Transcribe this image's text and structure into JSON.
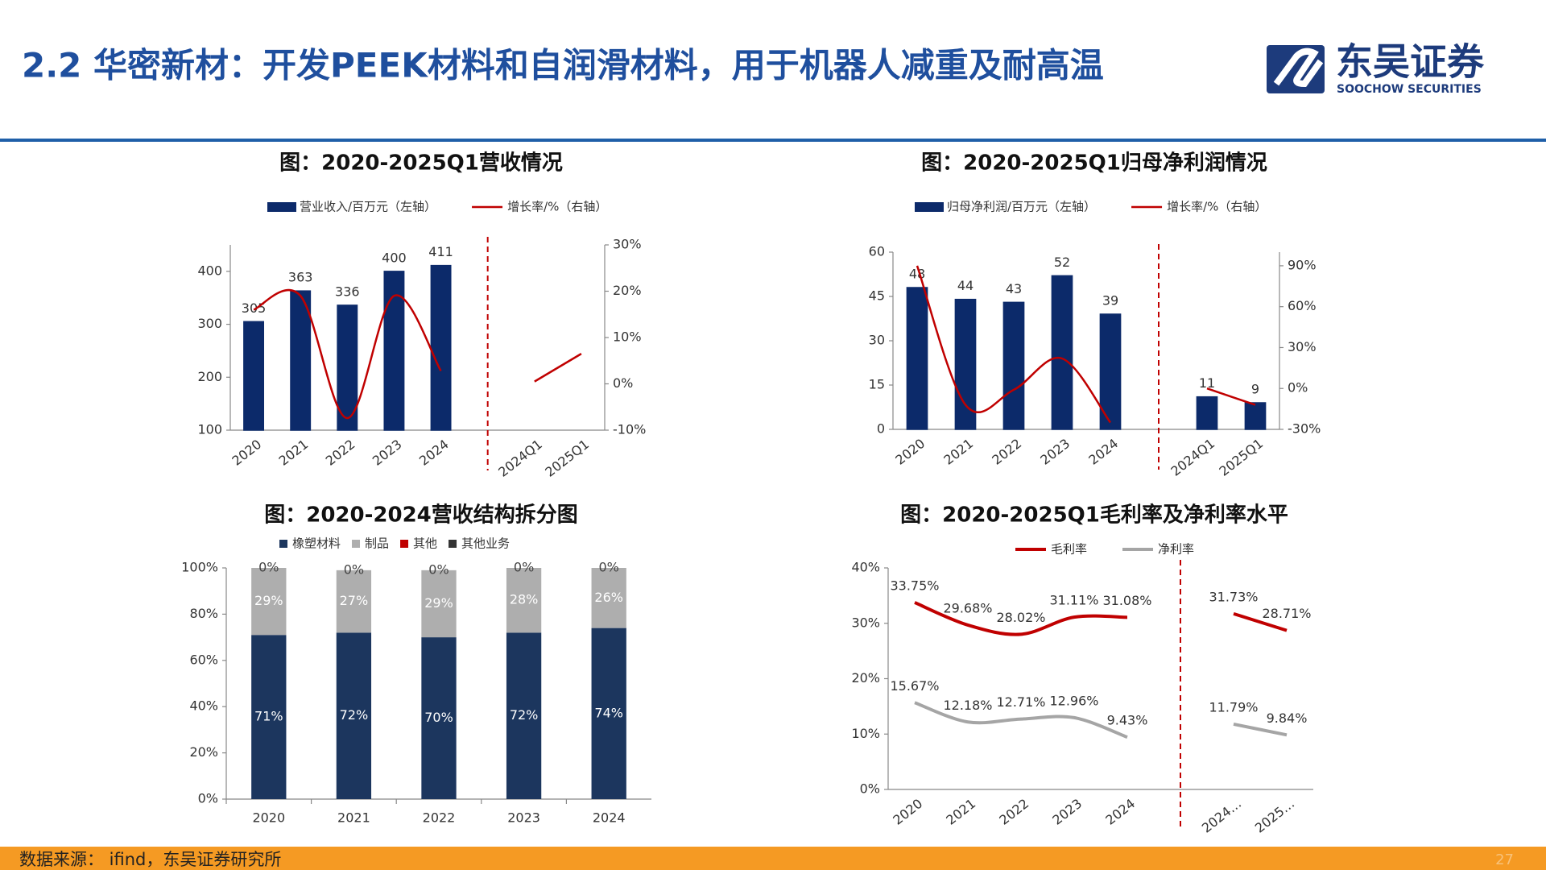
{
  "header": {
    "title": "2.2 华密新材：开发PEEK材料和自润滑材料，用于机器人减重及耐高温",
    "logo_cn": "东吴证券",
    "logo_en": "SOOCHOW SECURITIES"
  },
  "footer": {
    "source": "数据来源： ifind，东吴证券研究所",
    "page": "27"
  },
  "chart_data": [
    {
      "type": "bar",
      "title": "图：2020-2025Q1营收情况",
      "categories": [
        "2020",
        "2021",
        "2022",
        "2023",
        "2024",
        null,
        "2024Q1",
        "2025Q1"
      ],
      "series": [
        {
          "name": "营业收入/百万元（左轴）",
          "type": "bar",
          "color": "#0c2a6a",
          "values": [
            305,
            363,
            336,
            400,
            411,
            null,
            100,
            100
          ],
          "value_labels": [
            "305",
            "363",
            "336",
            "400",
            "411",
            null,
            null,
            null
          ]
        },
        {
          "name": "增长率/%（右轴）",
          "type": "line",
          "axis": "y2",
          "smooth": true,
          "color": "#c00000",
          "values": [
            16,
            19,
            -7.4,
            19,
            2.8,
            null,
            0.5,
            6.5
          ]
        }
      ],
      "ylim": [
        100,
        450
      ],
      "yticks": [
        100,
        200,
        300,
        400
      ],
      "y2lim": [
        -10,
        30
      ],
      "y2ticks": [
        {
          "value": -10,
          "label": "-10%"
        },
        {
          "value": 0,
          "label": "0%"
        },
        {
          "value": 10,
          "label": "10%"
        },
        {
          "value": 20,
          "label": "20%"
        },
        {
          "value": 30,
          "label": "30%"
        }
      ],
      "divider": true,
      "divider_color": "#c00000"
    },
    {
      "type": "bar",
      "title": "图：2020-2025Q1归母净利润情况",
      "categories": [
        "2020",
        "2021",
        "2022",
        "2023",
        "2024",
        null,
        "2024Q1",
        "2025Q1"
      ],
      "series": [
        {
          "name": "归母净利润/百万元（左轴）",
          "type": "bar",
          "color": "#0c2a6a",
          "values": [
            48,
            44,
            43,
            52,
            39,
            null,
            11,
            9
          ],
          "data_labels": true
        },
        {
          "name": "增长率/%（右轴）",
          "type": "line",
          "axis": "y2",
          "smooth": true,
          "color": "#c00000",
          "values": [
            90,
            -12,
            -1,
            22,
            -25,
            null,
            0,
            -12
          ]
        }
      ],
      "ylim": [
        0,
        60
      ],
      "yticks": [
        0,
        15,
        30,
        45,
        60
      ],
      "y2lim": [
        -30,
        100
      ],
      "y2ticks": [
        {
          "value": -30,
          "label": "-30%"
        },
        {
          "value": 0,
          "label": "0%"
        },
        {
          "value": 30,
          "label": "30%"
        },
        {
          "value": 60,
          "label": "60%"
        },
        {
          "value": 90,
          "label": "90%"
        }
      ],
      "divider": true,
      "divider_color": "#c00000"
    },
    {
      "type": "stacked",
      "title": "图：2020-2024营收结构拆分图",
      "categories": [
        "2020",
        "2021",
        "2022",
        "2023",
        "2024"
      ],
      "series": [
        {
          "name": "橡塑材料",
          "color": "#1c365e",
          "values": [
            71,
            72,
            70,
            72,
            74
          ],
          "value_labels": [
            "71%",
            "72%",
            "70%",
            "72%",
            "74%"
          ]
        },
        {
          "name": "制品",
          "color": "#aeaeae",
          "values": [
            29,
            27,
            29,
            28,
            26
          ],
          "value_labels": [
            "29%",
            "27%",
            "29%",
            "28%",
            "26%"
          ]
        },
        {
          "name": "其他",
          "color": "#c00000",
          "values": [
            0,
            0,
            0,
            0,
            0
          ],
          "value_labels": [
            "0%",
            "0%",
            "0%",
            "0%",
            "0%"
          ]
        },
        {
          "name": "其他业务",
          "color": "#333333",
          "values": [
            0,
            0,
            0,
            0,
            0
          ]
        }
      ],
      "ylim": [
        0,
        100
      ],
      "yticks": [
        {
          "value": 0,
          "label": "0%"
        },
        {
          "value": 20,
          "label": "20%"
        },
        {
          "value": 40,
          "label": "40%"
        },
        {
          "value": 60,
          "label": "60%"
        },
        {
          "value": 80,
          "label": "80%"
        },
        {
          "value": 100,
          "label": "100%"
        }
      ]
    },
    {
      "type": "line",
      "title": "图：2020-2025Q1毛利率及净利率水平",
      "categories": [
        "2020",
        "2021",
        "2022",
        "2023",
        "2024",
        null,
        "2024…",
        "2025…"
      ],
      "series": [
        {
          "name": "毛利率",
          "color": "#c00000",
          "smooth": true,
          "values": [
            33.75,
            29.68,
            28.02,
            31.11,
            31.08,
            null,
            31.73,
            28.71
          ],
          "value_labels": [
            "33.75%",
            "29.68%",
            "28.02%",
            "31.11%",
            "31.08%",
            null,
            "31.73%",
            "28.71%"
          ]
        },
        {
          "name": "净利率",
          "color": "#a5a5a5",
          "smooth": true,
          "values": [
            15.67,
            12.18,
            12.71,
            12.96,
            9.43,
            null,
            11.79,
            9.84
          ],
          "value_labels": [
            "15.67%",
            "12.18%",
            "12.71%",
            "12.96%",
            "9.43%",
            null,
            "11.79%",
            "9.84%"
          ]
        }
      ],
      "ylim": [
        0,
        40
      ],
      "yticks": [
        {
          "value": 0,
          "label": "0%"
        },
        {
          "value": 10,
          "label": "10%"
        },
        {
          "value": 20,
          "label": "20%"
        },
        {
          "value": 30,
          "label": "30%"
        },
        {
          "value": 40,
          "label": "40%"
        }
      ],
      "divider": true,
      "divider_color": "#c00000"
    }
  ]
}
